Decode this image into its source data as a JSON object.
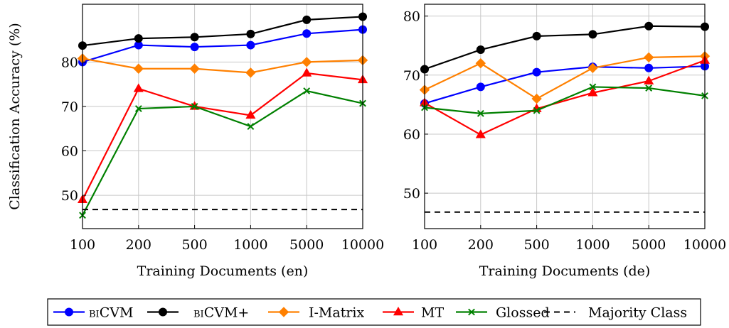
{
  "chart_data": [
    {
      "type": "line",
      "xlabel": "Training Documents (en)",
      "ylabel": "Classification Accuracy (%)",
      "categories": [
        "100",
        "200",
        "500",
        "1000",
        "5000",
        "10000"
      ],
      "ylim": [
        42.5,
        93
      ],
      "yticks": [
        50,
        60,
        70,
        80
      ],
      "grid": true,
      "series": [
        {
          "name": "biCVM",
          "color": "#0000ff",
          "marker": "circle",
          "values": [
            80.0,
            83.8,
            83.4,
            83.8,
            86.4,
            87.3
          ]
        },
        {
          "name": "biCVM+",
          "color": "#000000",
          "marker": "circle",
          "values": [
            83.7,
            85.3,
            85.6,
            86.3,
            89.5,
            90.2
          ]
        },
        {
          "name": "I-Matrix",
          "color": "#ff8000",
          "marker": "diamond",
          "values": [
            80.8,
            78.5,
            78.5,
            77.6,
            80.0,
            80.4
          ]
        },
        {
          "name": "MT",
          "color": "#ff0000",
          "marker": "triangle",
          "values": [
            49.0,
            74.0,
            70.0,
            68.0,
            77.5,
            76.0
          ]
        },
        {
          "name": "Glossed",
          "color": "#008000",
          "marker": "x",
          "values": [
            45.5,
            69.5,
            70.0,
            65.5,
            73.5,
            70.7
          ]
        },
        {
          "name": "Majority Class",
          "color": "#000000",
          "marker": "none",
          "dashed": true,
          "values": [
            46.8,
            46.8,
            46.8,
            46.8,
            46.8,
            46.8
          ]
        }
      ]
    },
    {
      "type": "line",
      "xlabel": "Training Documents (de)",
      "ylabel": "",
      "categories": [
        "100",
        "200",
        "500",
        "1000",
        "5000",
        "10000"
      ],
      "ylim": [
        44,
        82
      ],
      "yticks": [
        50,
        60,
        70,
        80
      ],
      "grid": true,
      "series": [
        {
          "name": "biCVM",
          "color": "#0000ff",
          "marker": "circle",
          "values": [
            65.2,
            68.0,
            70.5,
            71.4,
            71.2,
            71.5
          ]
        },
        {
          "name": "biCVM+",
          "color": "#000000",
          "marker": "circle",
          "values": [
            71.0,
            74.3,
            76.6,
            76.9,
            78.3,
            78.2
          ]
        },
        {
          "name": "I-Matrix",
          "color": "#ff8000",
          "marker": "diamond",
          "values": [
            67.5,
            72.0,
            66.0,
            71.2,
            73.0,
            73.2
          ]
        },
        {
          "name": "MT",
          "color": "#ff0000",
          "marker": "triangle",
          "values": [
            65.3,
            59.9,
            64.3,
            67.0,
            69.0,
            72.5
          ]
        },
        {
          "name": "Glossed",
          "color": "#008000",
          "marker": "x",
          "values": [
            64.5,
            63.5,
            64.0,
            68.0,
            67.8,
            66.5
          ]
        },
        {
          "name": "Majority Class",
          "color": "#000000",
          "marker": "none",
          "dashed": true,
          "values": [
            46.8,
            46.8,
            46.8,
            46.8,
            46.8,
            46.8
          ]
        }
      ]
    }
  ],
  "legend": {
    "placement": "bottom-center",
    "items": [
      {
        "text": "bi",
        "text2": "CVM",
        "marker": "circle",
        "color": "#0000ff"
      },
      {
        "text": "bi",
        "text2": "CVM+",
        "marker": "circle",
        "color": "#000000"
      },
      {
        "text": "",
        "text2": "I-Matrix",
        "marker": "diamond",
        "color": "#ff8000"
      },
      {
        "text": "",
        "text2": "MT",
        "marker": "triangle",
        "color": "#ff0000"
      },
      {
        "text": "",
        "text2": "Glossed",
        "marker": "x",
        "color": "#008000"
      },
      {
        "text": "",
        "text2": "Majority Class",
        "marker": "none",
        "color": "#000000",
        "dashed": true
      }
    ]
  }
}
